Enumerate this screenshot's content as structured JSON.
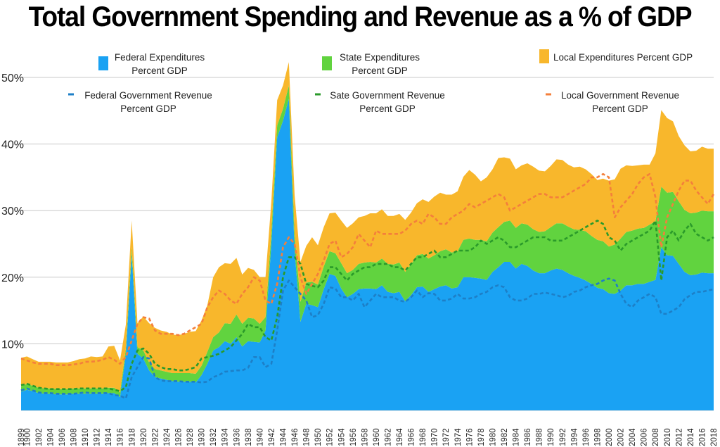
{
  "chart_data": {
    "type": "area",
    "title": "Total Government Spending and Revenue as a % of GDP",
    "ylim": [
      0,
      50
    ],
    "yticks": [
      {
        "value": 10,
        "label": "10%"
      },
      {
        "value": 20,
        "label": "20%"
      },
      {
        "value": 30,
        "label": "30%"
      },
      {
        "value": 40,
        "label": "40%"
      },
      {
        "value": 50,
        "label": "50%"
      }
    ],
    "grid": true,
    "x_first_label": "1899",
    "x": [
      1899,
      1900,
      1901,
      1902,
      1903,
      1904,
      1905,
      1906,
      1907,
      1908,
      1909,
      1910,
      1911,
      1912,
      1913,
      1914,
      1915,
      1916,
      1917,
      1918,
      1919,
      1920,
      1921,
      1922,
      1923,
      1924,
      1925,
      1926,
      1927,
      1928,
      1929,
      1930,
      1931,
      1932,
      1933,
      1934,
      1935,
      1936,
      1937,
      1938,
      1939,
      1940,
      1941,
      1942,
      1943,
      1944,
      1945,
      1946,
      1947,
      1948,
      1949,
      1950,
      1951,
      1952,
      1953,
      1954,
      1955,
      1956,
      1957,
      1958,
      1959,
      1960,
      1961,
      1962,
      1963,
      1964,
      1965,
      1966,
      1967,
      1968,
      1969,
      1970,
      1971,
      1972,
      1973,
      1974,
      1975,
      1976,
      1977,
      1978,
      1979,
      1980,
      1981,
      1982,
      1983,
      1984,
      1985,
      1986,
      1987,
      1988,
      1989,
      1990,
      1991,
      1992,
      1993,
      1994,
      1995,
      1996,
      1997,
      1998,
      1999,
      2000,
      2001,
      2002,
      2003,
      2004,
      2005,
      2006,
      2007,
      2008,
      2009,
      2010,
      2011,
      2012,
      2013,
      2014,
      2015,
      2016,
      2017,
      2018
    ],
    "series": [
      {
        "name": "Federal Expenditures Percent GDP",
        "kind": "area",
        "color": "#1aa2f3",
        "values": [
          2.8,
          3.1,
          2.9,
          2.6,
          2.5,
          2.5,
          2.4,
          2.4,
          2.4,
          2.5,
          2.5,
          2.5,
          2.5,
          2.5,
          2.5,
          2.6,
          2.6,
          2.0,
          8.5,
          23.5,
          8.5,
          7.8,
          6.0,
          5.0,
          4.8,
          4.6,
          4.4,
          4.3,
          4.3,
          4.3,
          4.2,
          5.3,
          7.0,
          9.0,
          9.5,
          10.4,
          10.0,
          11.0,
          9.6,
          10.4,
          10.3,
          10.2,
          12.0,
          25.0,
          41.0,
          43.5,
          46.8,
          24.0,
          13.3,
          16.0,
          15.8,
          15.5,
          18.2,
          20.5,
          20.2,
          18.3,
          17.0,
          17.5,
          18.2,
          18.3,
          18.3,
          18.2,
          18.8,
          17.8,
          17.6,
          17.8,
          16.4,
          17.3,
          18.5,
          18.6,
          17.8,
          18.2,
          18.6,
          18.8,
          18.3,
          18.5,
          20.0,
          20.0,
          19.9,
          19.8,
          19.6,
          20.8,
          21.5,
          22.3,
          22.3,
          21.3,
          22.0,
          21.7,
          21.0,
          20.6,
          20.6,
          21.0,
          21.3,
          21.1,
          20.6,
          20.2,
          19.9,
          19.5,
          19.0,
          18.4,
          18.2,
          17.6,
          17.5,
          18.0,
          18.8,
          18.8,
          19.0,
          19.0,
          19.3,
          19.6,
          24.5,
          23.3,
          23.2,
          22.0,
          20.8,
          20.3,
          20.4,
          20.7,
          20.6,
          20.6
        ]
      },
      {
        "name": "State Expenditures Percent GDP",
        "kind": "area",
        "color": "#61d33f",
        "values": [
          0.8,
          0.9,
          0.8,
          0.8,
          0.8,
          0.8,
          0.8,
          0.8,
          0.8,
          0.8,
          0.8,
          0.8,
          0.8,
          0.8,
          0.8,
          0.8,
          0.8,
          0.7,
          0.8,
          1.0,
          1.0,
          1.2,
          1.2,
          1.2,
          1.2,
          1.2,
          1.2,
          1.3,
          1.3,
          1.3,
          1.3,
          1.4,
          1.8,
          2.0,
          2.2,
          2.7,
          3.0,
          3.4,
          3.4,
          3.5,
          3.5,
          2.8,
          2.0,
          1.8,
          1.8,
          1.8,
          2.0,
          2.5,
          3.0,
          3.2,
          3.5,
          3.4,
          3.4,
          3.4,
          3.4,
          3.8,
          3.6,
          3.6,
          3.8,
          3.9,
          4.0,
          4.0,
          4.0,
          4.2,
          4.3,
          4.4,
          4.4,
          4.6,
          4.8,
          4.9,
          5.0,
          5.1,
          5.3,
          5.4,
          5.4,
          5.4,
          5.6,
          5.8,
          5.7,
          5.8,
          5.8,
          5.9,
          6.0,
          6.0,
          6.2,
          6.1,
          6.1,
          6.2,
          6.2,
          6.2,
          6.3,
          6.5,
          6.8,
          7.0,
          7.0,
          7.0,
          7.2,
          7.4,
          7.2,
          7.2,
          7.2,
          7.0,
          7.4,
          7.8,
          8.0,
          8.2,
          8.3,
          8.4,
          8.6,
          8.8,
          9.1,
          9.4,
          9.6,
          9.4,
          9.3,
          9.3,
          9.3,
          9.3,
          9.3,
          9.3
        ]
      },
      {
        "name": "Local Expenditures Percent GDP",
        "kind": "area",
        "color": "#f8b72c",
        "values": [
          4.3,
          4.1,
          4.0,
          3.9,
          4.0,
          4.0,
          4.0,
          4.0,
          4.0,
          4.1,
          4.4,
          4.5,
          4.8,
          4.7,
          4.8,
          6.2,
          6.3,
          4.8,
          3.6,
          4.0,
          3.6,
          5.1,
          5.9,
          6.2,
          6.0,
          6.0,
          5.8,
          5.7,
          5.9,
          6.2,
          6.4,
          6.8,
          7.0,
          9.0,
          9.8,
          9.0,
          9.0,
          8.5,
          7.4,
          7.5,
          7.3,
          7.0,
          6.0,
          4.5,
          3.8,
          3.5,
          3.5,
          5.8,
          6.0,
          5.5,
          6.7,
          5.9,
          5.9,
          5.7,
          6.1,
          6.4,
          6.8,
          7.0,
          7.0,
          7.0,
          7.3,
          7.4,
          7.4,
          7.2,
          7.3,
          7.3,
          7.8,
          7.8,
          7.8,
          8.2,
          8.5,
          8.8,
          8.8,
          8.2,
          8.7,
          9.0,
          9.5,
          10.3,
          9.8,
          8.8,
          9.6,
          9.5,
          10.4,
          9.7,
          9.3,
          8.8,
          8.7,
          9.2,
          9.4,
          9.2,
          9.0,
          9.2,
          9.6,
          9.5,
          9.3,
          9.3,
          9.5,
          9.3,
          9.3,
          9.0,
          9.4,
          9.9,
          9.8,
          10.5,
          10.0,
          9.7,
          9.5,
          9.5,
          9.0,
          10.2,
          11.5,
          11.2,
          10.6,
          9.8,
          9.7,
          9.3,
          9.3,
          9.6,
          9.4,
          9.4
        ]
      },
      {
        "name": "Federal Government Revenue Percent GDP",
        "kind": "dashed",
        "color": "#1d7fc7",
        "values": [
          3.0,
          3.3,
          3.0,
          2.7,
          2.6,
          2.6,
          2.5,
          2.5,
          2.5,
          2.5,
          2.6,
          2.7,
          2.6,
          2.6,
          2.6,
          2.6,
          2.3,
          2.2,
          1.8,
          5.0,
          6.5,
          8.0,
          7.8,
          5.0,
          4.5,
          4.4,
          4.4,
          4.4,
          4.3,
          4.3,
          4.3,
          4.2,
          4.3,
          5.0,
          5.3,
          5.8,
          5.9,
          6.0,
          6.0,
          6.4,
          8.0,
          8.0,
          6.5,
          7.0,
          12.0,
          18.0,
          19.5,
          18.5,
          17.5,
          16.5,
          14.0,
          14.3,
          16.0,
          18.5,
          18.3,
          17.0,
          17.0,
          16.5,
          17.5,
          15.5,
          16.5,
          17.5,
          17.0,
          17.0,
          17.0,
          16.5,
          16.3,
          17.0,
          18.0,
          17.0,
          17.6,
          17.5,
          16.5,
          16.5,
          16.8,
          17.5,
          16.8,
          16.8,
          17.0,
          17.5,
          17.8,
          18.5,
          18.8,
          18.5,
          17.0,
          16.5,
          16.5,
          16.8,
          17.5,
          17.5,
          17.7,
          17.5,
          17.3,
          17.0,
          17.2,
          17.8,
          18.0,
          18.5,
          18.8,
          19.0,
          19.5,
          19.8,
          19.5,
          17.5,
          16.0,
          15.5,
          16.5,
          17.0,
          17.5,
          17.0,
          14.5,
          14.5,
          15.0,
          15.5,
          16.7,
          17.3,
          17.8,
          17.8,
          18.0,
          18.2
        ]
      },
      {
        "name": "Sate Government Revenue Percent GDP",
        "kind": "dashed",
        "color": "#2a9a2a",
        "values": [
          3.8,
          4.0,
          3.7,
          3.4,
          3.3,
          3.2,
          3.2,
          3.2,
          3.2,
          3.2,
          3.3,
          3.3,
          3.3,
          3.3,
          3.3,
          3.3,
          3.1,
          2.9,
          3.5,
          7.0,
          9.0,
          9.3,
          8.5,
          7.0,
          6.5,
          6.2,
          6.2,
          6.0,
          6.0,
          6.2,
          6.5,
          7.8,
          8.0,
          8.2,
          8.5,
          9.0,
          9.5,
          10.5,
          11.5,
          13.0,
          12.5,
          12.5,
          11.0,
          10.5,
          14.0,
          20.0,
          23.0,
          23.0,
          22.0,
          19.0,
          18.7,
          18.5,
          19.5,
          21.5,
          21.5,
          20.5,
          19.5,
          20.5,
          21.0,
          21.5,
          21.5,
          22.0,
          22.0,
          22.0,
          21.5,
          21.5,
          21.0,
          22.0,
          23.0,
          23.0,
          23.5,
          24.0,
          23.0,
          23.0,
          23.5,
          24.0,
          24.0,
          24.0,
          24.5,
          25.5,
          25.0,
          25.5,
          26.0,
          25.5,
          24.5,
          24.5,
          25.0,
          25.5,
          26.0,
          26.0,
          26.0,
          25.5,
          25.5,
          25.5,
          26.0,
          26.5,
          27.0,
          27.5,
          28.0,
          28.5,
          28.0,
          26.0,
          25.5,
          24.0,
          25.0,
          25.5,
          26.0,
          26.5,
          27.0,
          28.5,
          19.5,
          26.0,
          27.0,
          25.5,
          27.0,
          28.0,
          26.5,
          26.0,
          25.5,
          26.0
        ]
      },
      {
        "name": "Local Government Revenue Percent GDP",
        "kind": "dashed",
        "color": "#f47f3b",
        "values": [
          7.8,
          7.5,
          7.2,
          7.0,
          7.0,
          7.0,
          6.8,
          6.8,
          6.8,
          6.9,
          7.0,
          7.3,
          7.3,
          7.4,
          7.6,
          8.0,
          7.6,
          7.0,
          8.0,
          10.5,
          13.0,
          14.0,
          13.8,
          12.0,
          11.5,
          11.5,
          11.5,
          11.3,
          11.5,
          12.0,
          12.5,
          13.0,
          15.5,
          17.0,
          18.0,
          17.5,
          16.5,
          16.0,
          17.5,
          18.5,
          20.0,
          19.5,
          16.5,
          16.0,
          19.0,
          24.5,
          26.0,
          25.0,
          20.0,
          17.5,
          19.0,
          20.5,
          22.5,
          25.0,
          25.5,
          23.0,
          23.5,
          24.5,
          26.5,
          25.5,
          24.5,
          27.0,
          26.5,
          26.5,
          26.5,
          26.5,
          27.0,
          28.0,
          28.5,
          28.0,
          29.5,
          29.0,
          28.0,
          28.0,
          29.0,
          29.5,
          30.0,
          31.0,
          30.5,
          31.0,
          31.5,
          32.0,
          32.5,
          32.0,
          30.0,
          30.5,
          31.0,
          31.5,
          32.0,
          32.5,
          32.5,
          32.0,
          32.0,
          32.0,
          32.5,
          33.0,
          33.5,
          34.0,
          35.0,
          35.0,
          35.5,
          35.0,
          29.0,
          30.5,
          31.5,
          32.5,
          34.0,
          35.0,
          35.5,
          32.0,
          24.5,
          29.0,
          31.0,
          33.0,
          34.5,
          34.5,
          33.0,
          32.0,
          31.0,
          32.5
        ]
      }
    ]
  },
  "legend": [
    {
      "label_lines": [
        "Federal Expenditures",
        "Percent GDP"
      ],
      "color": "#1aa2f3",
      "kind": "square"
    },
    {
      "label_lines": [
        "State Expenditures",
        "Percent GDP"
      ],
      "color": "#61d33f",
      "kind": "square"
    },
    {
      "label_lines": [
        "Local Expenditures Percent GDP"
      ],
      "color": "#f8b72c",
      "kind": "square"
    },
    {
      "label_lines": [
        "Federal Government Revenue",
        "Percent GDP"
      ],
      "color": "#1d7fc7",
      "kind": "dash"
    },
    {
      "label_lines": [
        "Sate Government Revenue",
        "Percent GDP"
      ],
      "color": "#2a9a2a",
      "kind": "dash"
    },
    {
      "label_lines": [
        "Local Government Revenue",
        "Percent GDP"
      ],
      "color": "#f47f3b",
      "kind": "dash"
    }
  ]
}
